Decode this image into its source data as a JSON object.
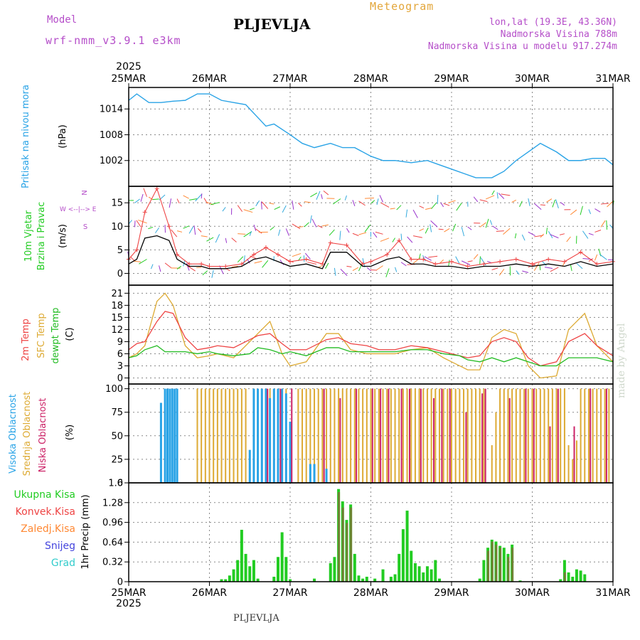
{
  "header": {
    "model_label": "Model",
    "model_name": "wrf-nmm_v3.9.1  e3km",
    "station": "PLJEVLJA",
    "title": "Meteogram",
    "lonlat": "lon,lat (19.3E, 43.36N)",
    "elevation": "Nadmorska Visina 788m",
    "elevation_model": "Nadmorska Visina u modelu 917.274m"
  },
  "footer": {
    "station": "PLJEVLJA"
  },
  "watermark": "made by Angel",
  "time_axis": {
    "year": "2025",
    "labels": [
      "25MAR",
      "26MAR",
      "27MAR",
      "28MAR",
      "29MAR",
      "30MAR",
      "31MAR"
    ]
  },
  "colors": {
    "pressure": "#29a3e6",
    "wind_green": "#22cc22",
    "temp_2m": "#ee4444",
    "temp_sfc": "#ddaa33",
    "dewpoint": "#22bb22",
    "cloud_high": "#29a3e6",
    "cloud_mid": "#ddaa33",
    "cloud_low": "#cc2266",
    "precip_total": "#22cc22",
    "precip_conv": "#ee4444",
    "precip_frz": "#ff8833",
    "precip_snow": "#4444dd",
    "precip_hail": "#33cccc",
    "ylabel_purple": "#b54ec9"
  },
  "chart_data": [
    {
      "type": "line",
      "id": "pressure",
      "ylabel_side": "Pritisak na nivou mora",
      "ylabel": "(hPa)",
      "yticks": [
        "1002",
        "1008",
        "1014"
      ],
      "ylim": [
        996,
        1019
      ],
      "x_days": [
        0,
        0.1,
        0.25,
        0.4,
        0.55,
        0.7,
        0.85,
        1.0,
        1.15,
        1.3,
        1.45,
        1.6,
        1.7,
        1.8,
        2.0,
        2.15,
        2.3,
        2.5,
        2.65,
        2.8,
        3.0,
        3.15,
        3.3,
        3.5,
        3.7,
        3.85,
        4.0,
        4.15,
        4.3,
        4.5,
        4.65,
        4.8,
        4.95,
        5.1,
        5.3,
        5.45,
        5.6,
        5.75,
        5.9,
        6.0
      ],
      "values": [
        1016,
        1017.5,
        1015.5,
        1015.5,
        1015.8,
        1016,
        1017.5,
        1017.5,
        1016,
        1015.5,
        1015,
        1012,
        1010,
        1010.5,
        1008,
        1006,
        1005,
        1006,
        1005,
        1005,
        1003,
        1002,
        1002,
        1001.5,
        1002,
        1001,
        1000,
        999,
        998,
        998,
        999.5,
        1002,
        1004,
        1006,
        1004,
        1002,
        1002,
        1002.5,
        1002.5,
        1001
      ]
    },
    {
      "type": "line",
      "id": "wind",
      "ylabel_side": "10m Vjetar",
      "ylabel_side2": "Brzina i Pravac",
      "ylabel": "(m/s)",
      "legend_ns": "N",
      "legend_ew": "W <--|--> E",
      "legend_s": "S",
      "yticks": [
        "0",
        "5",
        "10",
        "15"
      ],
      "ylim": [
        -2.5,
        18.5
      ],
      "x_days": [
        0,
        0.1,
        0.2,
        0.35,
        0.5,
        0.6,
        0.75,
        0.9,
        1.0,
        1.2,
        1.4,
        1.55,
        1.7,
        1.85,
        2.0,
        2.2,
        2.4,
        2.5,
        2.7,
        2.9,
        3.0,
        3.2,
        3.35,
        3.5,
        3.65,
        3.8,
        4.0,
        4.2,
        4.4,
        4.6,
        4.8,
        5.0,
        5.2,
        5.4,
        5.6,
        5.8,
        6.0
      ],
      "values_mean": [
        2,
        3,
        7.5,
        8,
        7,
        3,
        1.5,
        1.5,
        1,
        1,
        1.5,
        3,
        3.5,
        2.5,
        1.5,
        2,
        1,
        4.5,
        4.5,
        1.5,
        1.5,
        3,
        3.5,
        2,
        2,
        1.5,
        1.5,
        1,
        1.5,
        1.5,
        2,
        1.5,
        2,
        1.5,
        2.5,
        1.5,
        2
      ],
      "values_gust": [
        3,
        5,
        13,
        18,
        10,
        4,
        2,
        2,
        1.5,
        1.5,
        2,
        4,
        5.5,
        4,
        2.5,
        3,
        2,
        6.5,
        6,
        2,
        2.5,
        4,
        7,
        3,
        3,
        2,
        2.5,
        1.5,
        2,
        2.5,
        3,
        2,
        3,
        2.5,
        4.5,
        2,
        2.5
      ]
    },
    {
      "type": "line",
      "id": "temperature",
      "ylabel_2m": "2m Temp",
      "ylabel_sfc": "SFC Temp",
      "ylabel_dew": "dewpt Temp",
      "ylabel": "(C)",
      "yticks": [
        "0",
        "3",
        "6",
        "9",
        "12",
        "15",
        "18",
        "21"
      ],
      "ylim": [
        -1.5,
        23
      ],
      "x_days": [
        0,
        0.1,
        0.2,
        0.35,
        0.45,
        0.55,
        0.7,
        0.85,
        1.0,
        1.1,
        1.3,
        1.5,
        1.6,
        1.75,
        1.9,
        2.0,
        2.2,
        2.45,
        2.6,
        2.75,
        2.95,
        3.1,
        3.3,
        3.5,
        3.7,
        3.9,
        4.1,
        4.2,
        4.35,
        4.5,
        4.65,
        4.8,
        4.95,
        5.1,
        5.3,
        5.45,
        5.65,
        5.8,
        6.0
      ],
      "values_2m": [
        7,
        8.5,
        9,
        14,
        16.5,
        16,
        10,
        7,
        7.5,
        8,
        7.5,
        9.5,
        10.5,
        11,
        8.5,
        7,
        7,
        9.5,
        10,
        8.5,
        8,
        7,
        7,
        8,
        7.5,
        6.5,
        5.5,
        5,
        5.5,
        9,
        10,
        9,
        5,
        3,
        4,
        9,
        11,
        8,
        5.5
      ],
      "values_sfc": [
        5,
        6,
        8,
        19,
        21,
        18,
        8,
        5,
        5.5,
        6,
        5,
        9,
        11,
        14,
        6,
        3,
        4,
        11,
        11,
        7,
        6,
        6,
        6,
        7,
        7.5,
        5,
        3,
        2,
        2,
        10,
        12,
        11,
        3,
        0,
        0.5,
        12,
        16,
        8,
        4
      ],
      "values_dew": [
        5,
        5.5,
        7,
        8,
        6.5,
        6.5,
        6.5,
        6,
        6.5,
        6,
        5.5,
        6,
        7.5,
        7,
        6,
        6.5,
        5.5,
        7.5,
        7.5,
        6.5,
        6.5,
        6.5,
        6.5,
        7,
        7,
        6,
        5.5,
        4.5,
        4,
        5,
        4,
        5,
        4,
        3,
        3,
        5,
        5,
        5,
        4
      ]
    },
    {
      "type": "bar",
      "id": "cloud",
      "ylabel_high": "Visoka Oblacnost",
      "ylabel_mid": "Srednja Oblacnost",
      "ylabel_low": "Niska Oblacnost",
      "ylabel": "(%)",
      "yticks": [
        "0",
        "25",
        "50",
        "75",
        "100"
      ],
      "ylim": [
        0,
        105
      ],
      "high_bars": [
        [
          0.4,
          85
        ],
        [
          0.45,
          100
        ],
        [
          0.48,
          100
        ],
        [
          0.51,
          100
        ],
        [
          0.54,
          100
        ],
        [
          0.57,
          100
        ],
        [
          0.6,
          100
        ],
        [
          1.5,
          35
        ],
        [
          1.55,
          100
        ],
        [
          1.6,
          100
        ],
        [
          1.65,
          100
        ],
        [
          1.7,
          100
        ],
        [
          1.75,
          90
        ],
        [
          1.8,
          100
        ],
        [
          1.85,
          100
        ],
        [
          1.9,
          100
        ],
        [
          1.95,
          95
        ],
        [
          2.0,
          65
        ],
        [
          2.25,
          20
        ],
        [
          2.3,
          20
        ],
        [
          2.45,
          15
        ]
      ],
      "mid_bars": [
        [
          0.85,
          100
        ],
        [
          0.9,
          100
        ],
        [
          0.95,
          100
        ],
        [
          1.0,
          100
        ],
        [
          1.05,
          100
        ],
        [
          1.1,
          100
        ],
        [
          1.15,
          100
        ],
        [
          1.2,
          100
        ],
        [
          1.25,
          100
        ],
        [
          1.3,
          100
        ],
        [
          1.35,
          100
        ],
        [
          1.4,
          100
        ],
        [
          1.45,
          100
        ],
        [
          1.55,
          100
        ],
        [
          1.65,
          100
        ],
        [
          1.75,
          100
        ],
        [
          1.85,
          100
        ],
        [
          1.95,
          100
        ],
        [
          2.1,
          100
        ],
        [
          2.15,
          100
        ],
        [
          2.2,
          100
        ],
        [
          2.25,
          100
        ],
        [
          2.3,
          100
        ],
        [
          2.35,
          100
        ],
        [
          2.4,
          100
        ],
        [
          2.45,
          100
        ],
        [
          2.5,
          100
        ],
        [
          2.55,
          100
        ],
        [
          2.6,
          100
        ],
        [
          2.65,
          100
        ],
        [
          2.7,
          100
        ],
        [
          2.75,
          100
        ],
        [
          2.8,
          100
        ],
        [
          2.85,
          100
        ],
        [
          2.9,
          100
        ],
        [
          2.95,
          100
        ],
        [
          3.0,
          100
        ],
        [
          3.05,
          100
        ],
        [
          3.1,
          100
        ],
        [
          3.15,
          100
        ],
        [
          3.2,
          100
        ],
        [
          3.25,
          100
        ],
        [
          3.3,
          100
        ],
        [
          3.35,
          100
        ],
        [
          3.4,
          100
        ],
        [
          3.45,
          100
        ],
        [
          3.5,
          100
        ],
        [
          3.55,
          100
        ],
        [
          3.6,
          100
        ],
        [
          3.65,
          100
        ],
        [
          3.7,
          100
        ],
        [
          3.75,
          100
        ],
        [
          3.8,
          100
        ],
        [
          3.85,
          100
        ],
        [
          3.9,
          100
        ],
        [
          3.95,
          100
        ],
        [
          4.0,
          100
        ],
        [
          4.05,
          100
        ],
        [
          4.1,
          100
        ],
        [
          4.15,
          100
        ],
        [
          4.2,
          100
        ],
        [
          4.25,
          100
        ],
        [
          4.3,
          100
        ],
        [
          4.35,
          100
        ],
        [
          4.4,
          100
        ],
        [
          4.5,
          40
        ],
        [
          4.55,
          75
        ],
        [
          4.6,
          100
        ],
        [
          4.65,
          100
        ],
        [
          4.7,
          100
        ],
        [
          4.75,
          100
        ],
        [
          4.8,
          100
        ],
        [
          4.85,
          100
        ],
        [
          4.9,
          100
        ],
        [
          4.95,
          100
        ],
        [
          5.0,
          100
        ],
        [
          5.05,
          100
        ],
        [
          5.1,
          100
        ],
        [
          5.15,
          100
        ],
        [
          5.2,
          100
        ],
        [
          5.25,
          100
        ],
        [
          5.3,
          100
        ],
        [
          5.35,
          100
        ],
        [
          5.4,
          100
        ],
        [
          5.45,
          40
        ],
        [
          5.5,
          25
        ],
        [
          5.55,
          45
        ],
        [
          5.6,
          100
        ],
        [
          5.65,
          100
        ],
        [
          5.7,
          100
        ],
        [
          5.75,
          100
        ],
        [
          5.8,
          100
        ],
        [
          5.85,
          100
        ],
        [
          5.9,
          100
        ],
        [
          5.95,
          100
        ]
      ],
      "low_bars": [
        [
          1.72,
          100
        ],
        [
          1.88,
          100
        ],
        [
          2.02,
          100
        ],
        [
          2.42,
          100
        ],
        [
          2.62,
          90
        ],
        [
          2.82,
          100
        ],
        [
          3.02,
          100
        ],
        [
          3.12,
          100
        ],
        [
          3.22,
          100
        ],
        [
          3.38,
          100
        ],
        [
          3.48,
          100
        ],
        [
          3.62,
          100
        ],
        [
          3.78,
          90
        ],
        [
          3.88,
          100
        ],
        [
          3.98,
          100
        ],
        [
          4.18,
          75
        ],
        [
          4.38,
          95
        ],
        [
          4.42,
          100
        ],
        [
          4.72,
          90
        ],
        [
          4.92,
          100
        ],
        [
          5.02,
          100
        ],
        [
          5.22,
          60
        ],
        [
          5.32,
          100
        ],
        [
          5.52,
          60
        ],
        [
          5.72,
          100
        ],
        [
          5.92,
          100
        ]
      ]
    },
    {
      "type": "bar",
      "id": "precip",
      "ylabel": "1hr Precip (mm)",
      "legend": [
        "Ukupna Kisa",
        "Konvek.Kisa",
        "Zaledj.Kisa",
        "Snijeg",
        "Grad"
      ],
      "yticks": [
        "0",
        "0.32",
        "0.64",
        "0.96",
        "1.28",
        "1.6"
      ],
      "ylim": [
        0,
        1.6
      ],
      "total_bars": [
        [
          1.15,
          0.04
        ],
        [
          1.2,
          0.04
        ],
        [
          1.25,
          0.1
        ],
        [
          1.3,
          0.2
        ],
        [
          1.35,
          0.35
        ],
        [
          1.4,
          0.84
        ],
        [
          1.45,
          0.45
        ],
        [
          1.5,
          0.25
        ],
        [
          1.55,
          0.35
        ],
        [
          1.6,
          0.05
        ],
        [
          1.8,
          0.08
        ],
        [
          1.85,
          0.4
        ],
        [
          1.9,
          0.8
        ],
        [
          1.95,
          0.4
        ],
        [
          2.0,
          0.04
        ],
        [
          2.3,
          0.05
        ],
        [
          2.5,
          0.3
        ],
        [
          2.55,
          0.4
        ],
        [
          2.6,
          1.5
        ],
        [
          2.65,
          1.3
        ],
        [
          2.7,
          1.0
        ],
        [
          2.75,
          1.25
        ],
        [
          2.8,
          0.45
        ],
        [
          2.85,
          0.1
        ],
        [
          2.9,
          0.05
        ],
        [
          2.95,
          0.08
        ],
        [
          3.05,
          0.05
        ],
        [
          3.15,
          0.2
        ],
        [
          3.25,
          0.08
        ],
        [
          3.3,
          0.12
        ],
        [
          3.35,
          0.45
        ],
        [
          3.4,
          0.85
        ],
        [
          3.45,
          1.15
        ],
        [
          3.5,
          0.5
        ],
        [
          3.55,
          0.3
        ],
        [
          3.6,
          0.25
        ],
        [
          3.65,
          0.15
        ],
        [
          3.7,
          0.25
        ],
        [
          3.75,
          0.2
        ],
        [
          3.8,
          0.35
        ],
        [
          3.85,
          0.05
        ],
        [
          4.35,
          0.05
        ],
        [
          4.4,
          0.35
        ],
        [
          4.45,
          0.55
        ],
        [
          4.5,
          0.68
        ],
        [
          4.55,
          0.65
        ],
        [
          4.6,
          0.58
        ],
        [
          4.65,
          0.55
        ],
        [
          4.7,
          0.45
        ],
        [
          4.75,
          0.6
        ],
        [
          4.85,
          0.02
        ],
        [
          5.35,
          0.04
        ],
        [
          5.4,
          0.35
        ],
        [
          5.45,
          0.15
        ],
        [
          5.5,
          0.08
        ],
        [
          5.55,
          0.2
        ],
        [
          5.6,
          0.18
        ],
        [
          5.65,
          0.12
        ]
      ],
      "conv_bars": [
        [
          2.6,
          1.45
        ],
        [
          2.65,
          1.2
        ],
        [
          2.7,
          0.95
        ],
        [
          2.75,
          1.2
        ],
        [
          4.45,
          0.5
        ],
        [
          4.5,
          0.65
        ],
        [
          4.55,
          0.6
        ],
        [
          4.6,
          0.55
        ],
        [
          4.7,
          0.4
        ],
        [
          4.75,
          0.55
        ],
        [
          5.4,
          0.15
        ]
      ]
    }
  ]
}
